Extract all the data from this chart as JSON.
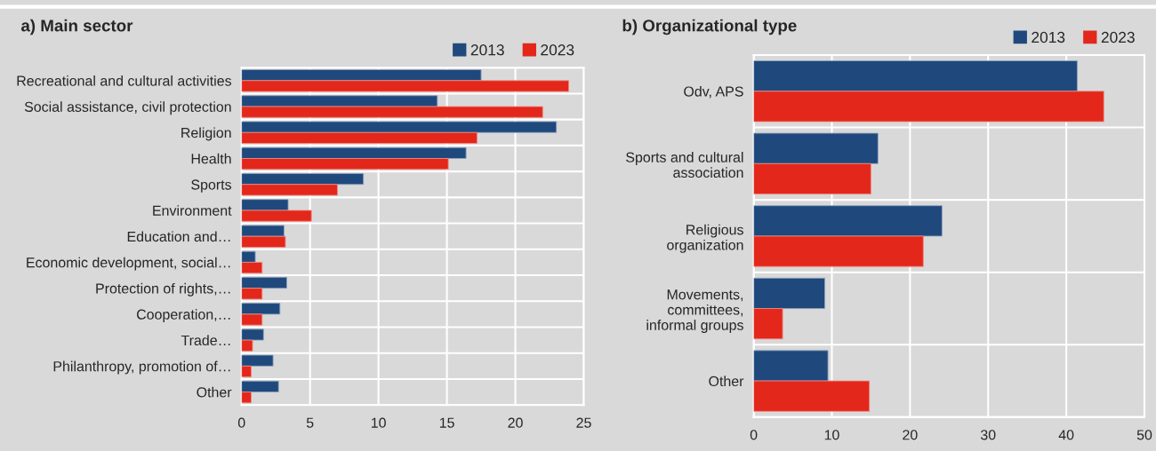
{
  "chart_data": [
    {
      "type": "bar",
      "orientation": "horizontal",
      "title": "a) Main sector",
      "categories": [
        "Recreational and cultural activities",
        "Social assistance, civil protection",
        "Religion",
        "Health",
        "Sports",
        "Environment",
        "Education and…",
        "Economic development, social…",
        "Protection of rights,…",
        "Cooperation,…",
        "Trade…",
        "Philanthropy, promotion of…",
        "Other"
      ],
      "series": [
        {
          "name": "2013",
          "color": "#1f497d",
          "values": [
            17.5,
            14.3,
            23.0,
            16.4,
            8.9,
            3.4,
            3.1,
            1.0,
            3.3,
            2.8,
            1.6,
            2.3,
            2.7
          ]
        },
        {
          "name": "2023",
          "color": "#e3271b",
          "values": [
            23.9,
            22.0,
            17.2,
            15.1,
            7.0,
            5.1,
            3.2,
            1.5,
            1.5,
            1.5,
            0.8,
            0.7,
            0.7
          ]
        }
      ],
      "xlim": [
        0,
        25
      ],
      "xticks": [
        0,
        5,
        10,
        15,
        20,
        25
      ],
      "grid": true,
      "legend": "top right"
    },
    {
      "type": "bar",
      "orientation": "horizontal",
      "title": "b) Organizational type",
      "categories": [
        "Odv, APS",
        "Sports and cultural\nassociation",
        "Religious\norganization",
        "Movements,\ncommittees,\ninformal groups",
        "Other"
      ],
      "series": [
        {
          "name": "2013",
          "color": "#1f497d",
          "values": [
            41.4,
            15.9,
            24.1,
            9.1,
            9.5
          ]
        },
        {
          "name": "2023",
          "color": "#e3271b",
          "values": [
            44.8,
            15.0,
            21.7,
            3.7,
            14.8
          ]
        }
      ],
      "xlim": [
        0,
        50
      ],
      "xticks": [
        0,
        10,
        20,
        30,
        40,
        50
      ],
      "grid": true,
      "legend": "top right"
    }
  ]
}
